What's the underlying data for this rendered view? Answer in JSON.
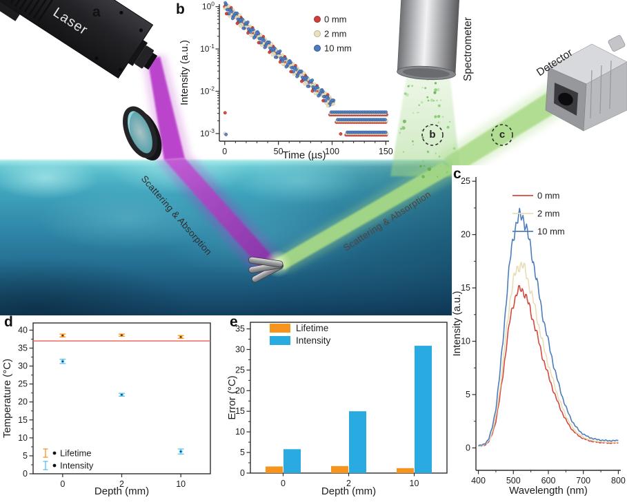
{
  "figure": {
    "panel_letters": {
      "a": "a",
      "b": "b",
      "c": "c",
      "d": "d",
      "e": "e"
    }
  },
  "illustration": {
    "labels": {
      "laser": "Laser",
      "spectrometer": "Spectrometer",
      "detector": "Detector",
      "scattering_left": "Scattering & Absorption",
      "scattering_right": "Scattering & Absorption",
      "circle_b": "b",
      "circle_c": "c"
    },
    "colors": {
      "laser_beam": "#b83ec9",
      "emission_beam": "#a8da85",
      "water_top": "#7fd7dc",
      "water_bottom": "#123f5e"
    }
  },
  "chart_data": [
    {
      "panel": "b",
      "type": "scatter",
      "x_label": "Time (µs)",
      "y_label": "Intensity (a.u.)",
      "y_scale": "log",
      "xlim": [
        0,
        150
      ],
      "x_ticks": [
        0,
        50,
        100,
        150
      ],
      "y_ticks": [
        {
          "base": "10",
          "exp": "0",
          "e": 0
        },
        {
          "base": "10",
          "exp": "-1",
          "e": -1
        },
        {
          "base": "10",
          "exp": "-2",
          "e": -2
        },
        {
          "base": "10",
          "exp": "-3",
          "e": -3
        }
      ],
      "t_us": [
        0,
        2.5,
        5,
        7.5,
        10,
        12.5,
        15,
        17.5,
        20,
        22.5,
        25,
        27.5,
        30,
        32.5,
        35,
        37.5,
        40,
        42.5,
        45,
        47.5,
        50,
        52.5,
        55,
        57.5,
        60,
        62.5,
        65,
        67.5,
        70,
        72.5,
        75,
        77.5,
        80,
        82.5,
        85,
        87.5,
        90,
        92.5,
        95,
        97.5,
        100
      ],
      "intensity": [
        1,
        0.877,
        0.769,
        0.674,
        0.591,
        0.518,
        0.454,
        0.398,
        0.349,
        0.306,
        0.268,
        0.235,
        0.206,
        0.181,
        0.159,
        0.139,
        0.122,
        0.107,
        0.0937,
        0.0821,
        0.072,
        0.0631,
        0.0553,
        0.0485,
        0.0425,
        0.0373,
        0.0327,
        0.0286,
        0.0251,
        0.022,
        0.0193,
        0.0169,
        0.0148,
        0.013,
        0.0114,
        0.01,
        0.00876,
        0.00768,
        0.00673,
        0.0059,
        0.00517
      ],
      "noise_bands": [
        {
          "intensity": 0.003,
          "t_start": 98,
          "t_end": 151
        },
        {
          "intensity": 0.002,
          "t_start": 104,
          "t_end": 151
        },
        {
          "intensity": 0.001,
          "t_start": 113,
          "t_end": 151
        }
      ],
      "outliers": [
        [
          0.3,
          0.0031
        ],
        [
          0,
          0.001
        ],
        [
          1.2,
          0.00095
        ],
        [
          108,
          0.00098
        ],
        [
          96,
          0.0045
        ]
      ],
      "series": [
        {
          "name": "0 mm",
          "color": "#cf4038",
          "edge": "#9e2f27"
        },
        {
          "name": "2 mm",
          "color": "#e9e1c0",
          "edge": "#bfb386"
        },
        {
          "name": "10 mm",
          "color": "#4d7dc0",
          "edge": "#2f5593"
        }
      ]
    },
    {
      "panel": "c",
      "type": "line",
      "x_label": "Wavelength (nm)",
      "y_label": "Intensity (a.u.)",
      "xlim": [
        400,
        800
      ],
      "ylim": [
        0,
        25
      ],
      "x_ticks": [
        400,
        500,
        600,
        700,
        800
      ],
      "y_ticks": [
        0,
        5,
        10,
        15,
        20,
        25
      ],
      "wavelengths_nm": [
        400,
        410,
        420,
        430,
        440,
        450,
        460,
        470,
        480,
        490,
        500,
        510,
        520,
        530,
        540,
        550,
        560,
        570,
        580,
        590,
        600,
        610,
        620,
        630,
        640,
        650,
        660,
        670,
        680,
        690,
        700,
        710,
        720,
        730,
        740,
        750,
        760,
        770,
        780,
        790,
        800
      ],
      "series": [
        {
          "name": "0 mm",
          "color": "#d4483e",
          "peak_nm": 520,
          "values": [
            0.15,
            0.18,
            0.3,
            0.6,
            1.34,
            2.53,
            4.47,
            6.85,
            9.54,
            11.92,
            13.56,
            14.53,
            14.9,
            14.68,
            13.86,
            12.67,
            11.62,
            10.28,
            8.94,
            7.82,
            6.78,
            5.81,
            4.84,
            4.02,
            3.28,
            2.61,
            2.09,
            1.64,
            1.31,
            1.06,
            0.88,
            0.75,
            0.66,
            0.58,
            0.54,
            0.51,
            0.48,
            0.46,
            0.46,
            0.46,
            0.48
          ]
        },
        {
          "name": "2 mm",
          "color": "#e7ddb6",
          "peak_nm": 520,
          "values": [
            0.17,
            0.21,
            0.34,
            0.69,
            1.55,
            2.92,
            5.16,
            7.91,
            11.01,
            13.76,
            15.65,
            16.77,
            17.2,
            16.94,
            16.0,
            14.62,
            13.42,
            11.87,
            10.32,
            9.03,
            7.83,
            6.71,
            5.59,
            4.64,
            3.78,
            3.01,
            2.41,
            1.89,
            1.51,
            1.22,
            1.01,
            0.86,
            0.76,
            0.67,
            0.62,
            0.58,
            0.55,
            0.53,
            0.53,
            0.53,
            0.55
          ]
        },
        {
          "name": "10 mm",
          "color": "#4c7cba",
          "peak_nm": 520,
          "values": [
            0.22,
            0.26,
            0.44,
            0.87,
            1.96,
            3.71,
            6.54,
            10.03,
            13.95,
            17.44,
            19.84,
            21.26,
            21.8,
            21.47,
            20.27,
            18.53,
            17.0,
            15.04,
            13.08,
            11.45,
            9.92,
            8.5,
            7.09,
            5.89,
            4.8,
            3.82,
            3.05,
            2.4,
            1.92,
            1.55,
            1.29,
            1.09,
            0.96,
            0.85,
            0.78,
            0.74,
            0.7,
            0.68,
            0.68,
            0.68,
            0.7
          ]
        }
      ]
    },
    {
      "panel": "d",
      "type": "scatter-error",
      "x_label": "Depth (mm)",
      "y_label": "Temperature (°C)",
      "categories": [
        "0",
        "2",
        "10"
      ],
      "ylim": [
        0,
        40
      ],
      "y_ticks": [
        0,
        5,
        10,
        15,
        20,
        25,
        30,
        35,
        40
      ],
      "reference_line": {
        "y": 37,
        "color": "#ec6a5e"
      },
      "series": [
        {
          "name": "Lifetime",
          "color": "#f69322",
          "values": [
            38.5,
            38.6,
            38.1
          ],
          "errors": [
            0.4,
            0.3,
            0.4
          ]
        },
        {
          "name": "Intensity",
          "color": "#54c4f5",
          "values": [
            31.3,
            22.0,
            6.2
          ],
          "errors": [
            0.6,
            0.4,
            0.7
          ]
        }
      ]
    },
    {
      "panel": "e",
      "type": "bar",
      "x_label": "Depth (mm)",
      "y_label": "Error (°C)",
      "categories": [
        "0",
        "2",
        "10"
      ],
      "ylim": [
        0,
        35
      ],
      "y_ticks": [
        0,
        5,
        10,
        15,
        20,
        25,
        30,
        35
      ],
      "series": [
        {
          "name": "Lifetime",
          "color": "#f6941d",
          "values": [
            1.6,
            1.7,
            1.2
          ]
        },
        {
          "name": "Intensity",
          "color": "#29abe2",
          "values": [
            5.8,
            15.0,
            30.9
          ]
        }
      ]
    }
  ]
}
